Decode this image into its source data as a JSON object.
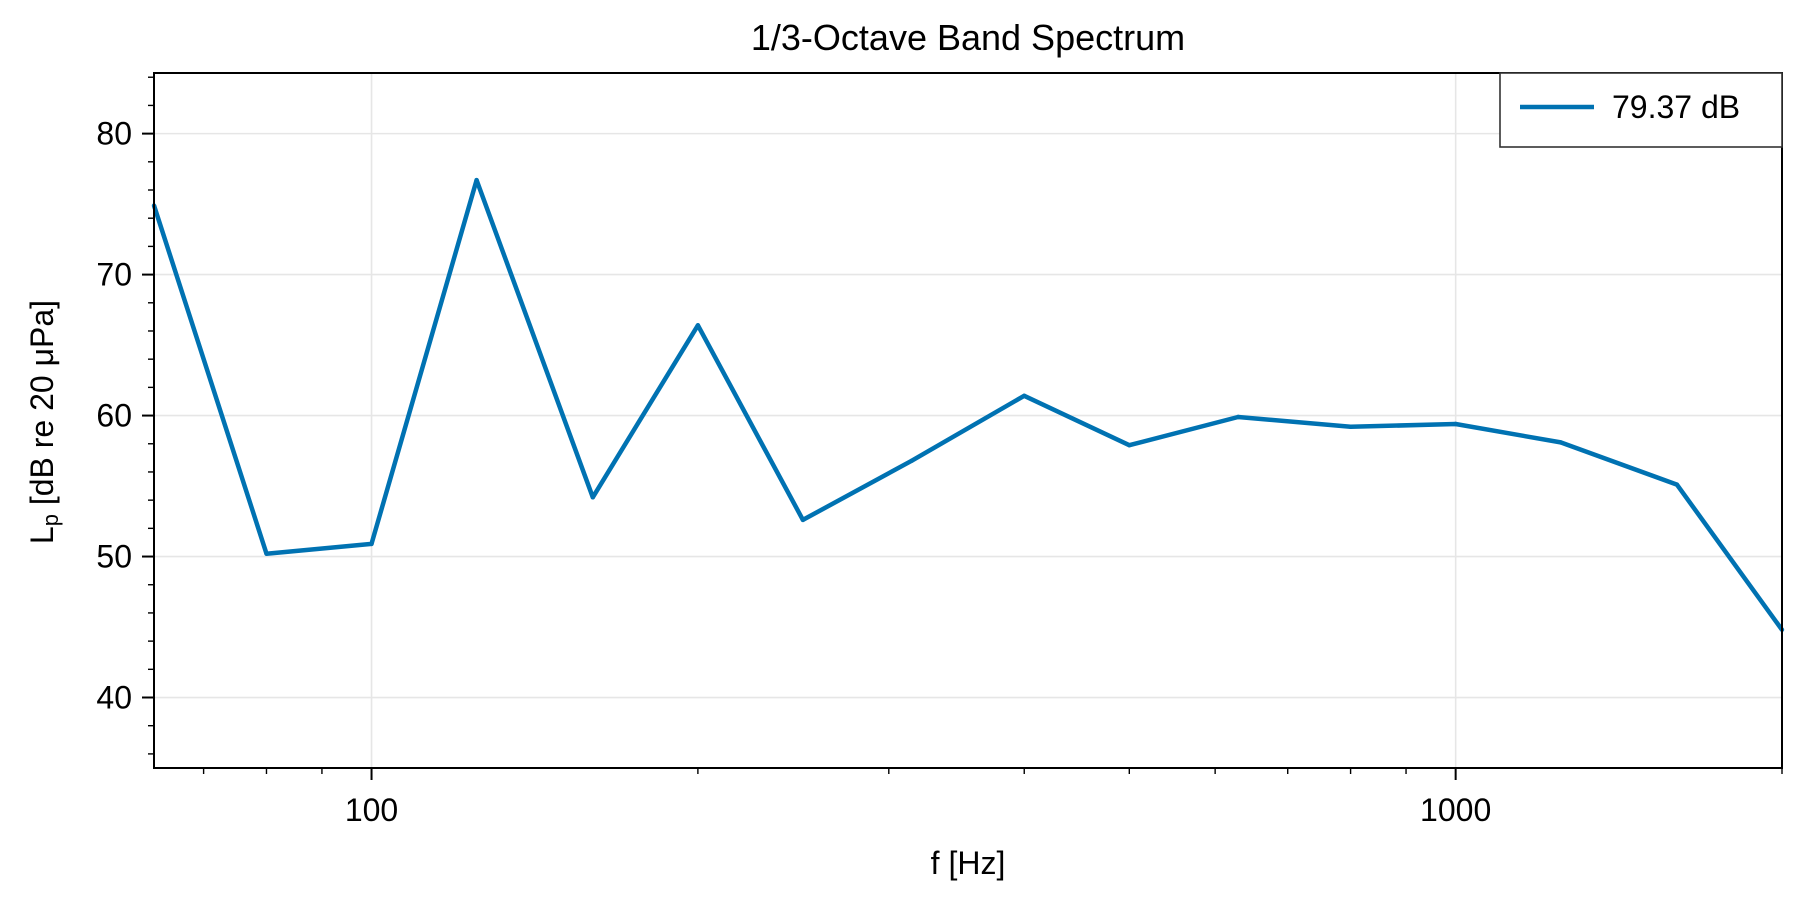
{
  "chart_data": {
    "type": "line",
    "title": "1/3-Octave Band Spectrum",
    "xlabel": "f [Hz]",
    "ylabel": "Lp [dB re 20 μPa]",
    "ylabel_main": "L",
    "ylabel_sub": "p",
    "ylabel_rest": " [dB re 20 μPa]",
    "x_scale": "log",
    "xlim": [
      63,
      2000
    ],
    "ylim": [
      35,
      84.3
    ],
    "grid": true,
    "legend_position": "top-right",
    "x_ticks": [
      {
        "value": 100,
        "label": "100"
      },
      {
        "value": 1000,
        "label": "1000"
      }
    ],
    "y_ticks": [
      {
        "value": 40,
        "label": "40"
      },
      {
        "value": 50,
        "label": "50"
      },
      {
        "value": 60,
        "label": "60"
      },
      {
        "value": 70,
        "label": "70"
      },
      {
        "value": 80,
        "label": "80"
      }
    ],
    "series": [
      {
        "name": "79.37 dB",
        "color": "#0072b2",
        "x": [
          63,
          80,
          100,
          125,
          160,
          200,
          250,
          315,
          400,
          500,
          630,
          800,
          1000,
          1250,
          1600,
          2000
        ],
        "y": [
          74.9,
          50.2,
          50.9,
          76.7,
          54.2,
          66.4,
          52.6,
          56.8,
          61.4,
          57.9,
          59.9,
          59.2,
          59.4,
          58.1,
          55.1,
          44.8
        ]
      }
    ]
  }
}
